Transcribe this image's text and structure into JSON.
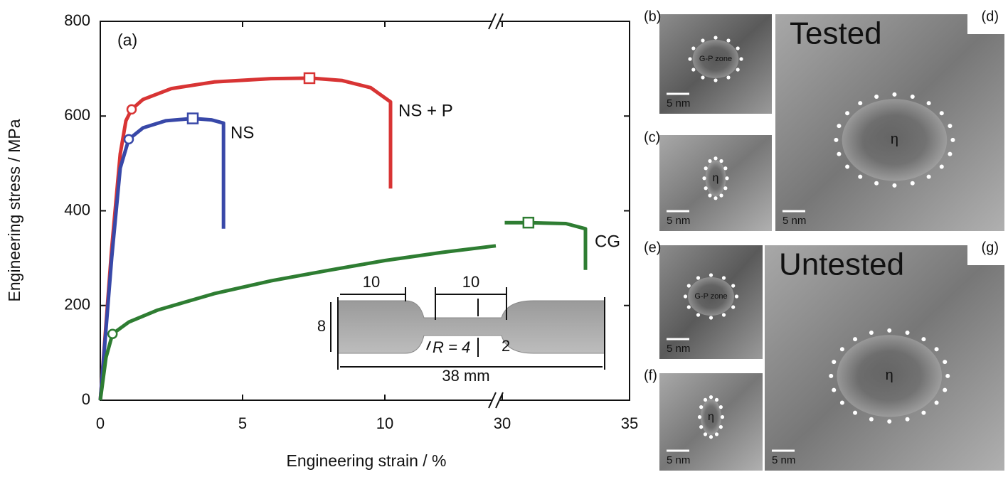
{
  "chart_data": {
    "type": "line",
    "panel_label": "(a)",
    "xlabel": "Engineering strain / %",
    "ylabel": "Engineering stress / MPa",
    "xlim": [
      0,
      35
    ],
    "xbreak": [
      13.9,
      29.75
    ],
    "xticks": [
      0,
      5,
      10,
      30,
      35
    ],
    "ylim": [
      0,
      800
    ],
    "yticks": [
      0,
      200,
      400,
      600,
      800
    ],
    "series": [
      {
        "name": "NS + P",
        "color": "#d83434",
        "x": [
          0,
          0.4,
          0.7,
          0.9,
          1.1,
          1.5,
          2.5,
          4,
          6,
          7.4,
          8.5,
          9.5,
          10.2,
          10.2
        ],
        "y": [
          0,
          320,
          520,
          590,
          614,
          635,
          658,
          672,
          679,
          680,
          675,
          660,
          630,
          447
        ],
        "markers": [
          {
            "x": 1.1,
            "y": 614,
            "shape": "circle"
          },
          {
            "x": 7.35,
            "y": 680,
            "shape": "square"
          }
        ]
      },
      {
        "name": "NS",
        "color": "#3848a8",
        "x": [
          0,
          0.4,
          0.7,
          1.0,
          1.5,
          2.3,
          3.25,
          3.9,
          4.33,
          4.33
        ],
        "y": [
          0,
          300,
          490,
          551,
          575,
          590,
          595,
          592,
          585,
          362
        ],
        "markers": [
          {
            "x": 1.0,
            "y": 551,
            "shape": "circle"
          },
          {
            "x": 3.25,
            "y": 595,
            "shape": "square"
          }
        ]
      },
      {
        "name": "CG",
        "color": "#2e7d32",
        "x": [
          0,
          0.2,
          0.43,
          1,
          2,
          4,
          6,
          8,
          10,
          12,
          13.9,
          null,
          30.1,
          31,
          32.5,
          33.27,
          33.27
        ],
        "y": [
          0,
          90,
          140,
          165,
          190,
          225,
          252,
          274,
          295,
          312,
          326,
          null,
          375,
          375,
          373,
          362,
          275
        ],
        "markers": [
          {
            "x": 0.43,
            "y": 140,
            "shape": "circle"
          },
          {
            "x": 31.03,
            "y": 375,
            "shape": "square"
          }
        ]
      }
    ],
    "inset": {
      "grip_left": "10",
      "gauge": "10",
      "width": "8",
      "radius": "R = 4",
      "thickness": "2",
      "total": "38 mm"
    }
  },
  "panels": [
    {
      "label": "(b)",
      "text": "G-P zone",
      "scale": "5 nm"
    },
    {
      "label": "(c)",
      "text": "η",
      "scale": "5 nm"
    },
    {
      "label": "(d)",
      "heading": "Tested",
      "text": "η",
      "scale": "5 nm"
    },
    {
      "label": "(e)",
      "text": "G-P zone",
      "scale": "5 nm"
    },
    {
      "label": "(f)",
      "text": "η",
      "scale": "5 nm"
    },
    {
      "label": "(g)",
      "heading": "Untested",
      "text": "η",
      "scale": "5 nm"
    }
  ]
}
